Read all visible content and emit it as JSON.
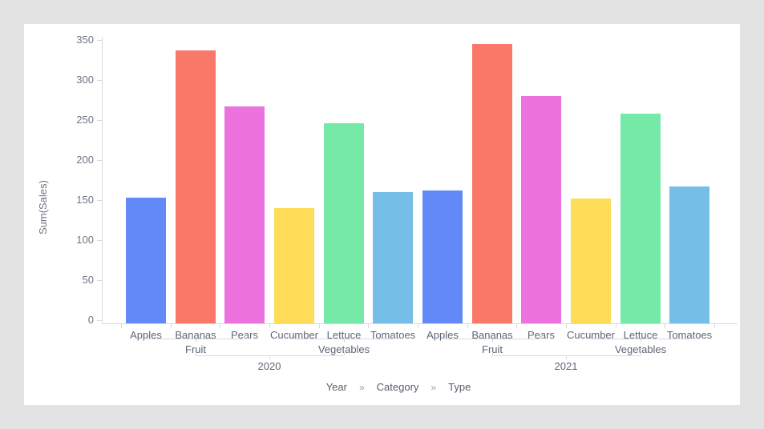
{
  "page": {
    "background": "#e3e3e3",
    "card_background": "#ffffff"
  },
  "chart_data": {
    "type": "bar",
    "title": "",
    "xlabel": "",
    "ylabel": "Sum(Sales)",
    "ylim": [
      0,
      350
    ],
    "yticks": [
      0,
      50,
      100,
      150,
      200,
      250,
      300,
      350
    ],
    "grid": false,
    "legend": "none",
    "axis_color": "#d9d9e0",
    "tick_label_color": "#6e7683",
    "category_label_color": "#5d6675",
    "palette": {
      "Apples": "#6289f7",
      "Bananas": "#fa7868",
      "Pears": "#ec73dd",
      "Cucumber": "#ffdd59",
      "Lettuce": "#75e9a8",
      "Tomatoes": "#74bee8"
    },
    "groups": [
      {
        "year": "2020",
        "categories": [
          {
            "name": "Fruit",
            "types": [
              "Apples",
              "Bananas",
              "Pears"
            ],
            "values": [
              153,
              337,
              267
            ]
          },
          {
            "name": "Vegetables",
            "types": [
              "Cucumber",
              "Lettuce",
              "Tomatoes"
            ],
            "values": [
              140,
              246,
              160
            ]
          }
        ]
      },
      {
        "year": "2021",
        "categories": [
          {
            "name": "Fruit",
            "types": [
              "Apples",
              "Bananas",
              "Pears"
            ],
            "values": [
              162,
              345,
              280
            ]
          },
          {
            "name": "Vegetables",
            "types": [
              "Cucumber",
              "Lettuce",
              "Tomatoes"
            ],
            "values": [
              152,
              258,
              167
            ]
          }
        ]
      }
    ]
  },
  "footer": {
    "breadcrumb": {
      "items": [
        "Year",
        "Category",
        "Type"
      ],
      "separator": "»"
    }
  }
}
